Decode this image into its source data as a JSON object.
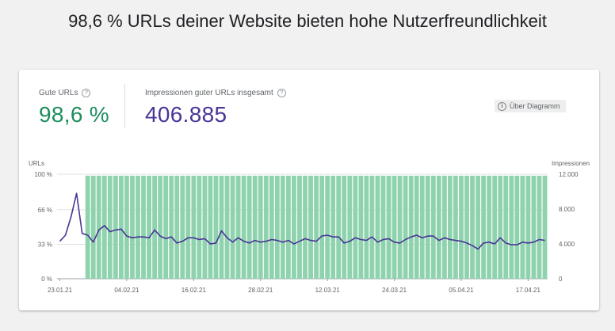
{
  "headline": "98,6 % URLs deiner Website bieten hohe Nutzerfreundlichkeit",
  "metrics": {
    "good_urls": {
      "label": "Gute URLs",
      "value": "98,6 %",
      "color": "#1e8e5e"
    },
    "impressions": {
      "label": "Impressionen guter URLs insgesamt",
      "value": "406.885",
      "color": "#4a3596"
    }
  },
  "about_button": {
    "label": "Über Diagramm",
    "icon": "info-icon"
  },
  "chart_data": {
    "type": "bar+line",
    "left_axis_title": "URLs",
    "right_axis_title": "Impressionen",
    "left_ticks": [
      "100 %",
      "66 %",
      "33 %",
      "0 %"
    ],
    "left_tick_values": [
      100,
      66,
      33,
      0
    ],
    "right_ticks": [
      "12.000",
      "8.000",
      "4.000",
      "0"
    ],
    "right_tick_values": [
      12000,
      8000,
      4000,
      0
    ],
    "x_labels": [
      "23.01.21",
      "04.02.21",
      "16.02.21",
      "28.02.21",
      "12.03.21",
      "24.03.21",
      "05.04.21",
      "17.04.21"
    ],
    "x_label_day_index": [
      0,
      12,
      24,
      36,
      48,
      60,
      72,
      84
    ],
    "days": 88,
    "bar_color": "#8fd3ae",
    "line_color": "#4a3596",
    "series": [
      {
        "name": "Gute URLs",
        "axis": "left",
        "start_day": 5,
        "value": 98.6
      },
      {
        "name": "Impressionen",
        "axis": "right",
        "values": [
          4300,
          5000,
          7100,
          9800,
          5200,
          5000,
          4200,
          5600,
          6100,
          5400,
          5600,
          5700,
          4900,
          4700,
          4800,
          4800,
          4700,
          5600,
          4900,
          4600,
          4800,
          4100,
          4300,
          4700,
          4700,
          4500,
          4600,
          4000,
          4100,
          5500,
          4700,
          4200,
          4700,
          4300,
          4100,
          4400,
          4200,
          4300,
          4500,
          4400,
          4200,
          4400,
          4000,
          4300,
          4600,
          4400,
          4300,
          4900,
          5000,
          4800,
          4800,
          4100,
          4300,
          4700,
          4500,
          4400,
          4800,
          4200,
          4500,
          4600,
          4200,
          4100,
          4500,
          4800,
          5000,
          4700,
          4900,
          4900,
          4400,
          4700,
          4500,
          4400,
          4300,
          4100,
          3800,
          3400,
          4100,
          4200,
          4000,
          4700,
          4100,
          3900,
          3900,
          4200,
          4100,
          4200,
          4500,
          4400
        ]
      }
    ]
  }
}
